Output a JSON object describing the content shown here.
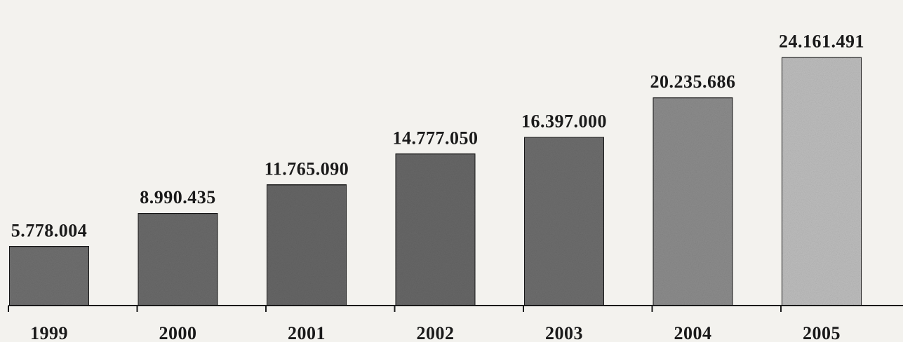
{
  "chart_data": {
    "type": "bar",
    "categories": [
      "1999",
      "2000",
      "2001",
      "2002",
      "2003",
      "2004",
      "2005"
    ],
    "values": [
      5778004,
      8990435,
      11765090,
      14777050,
      16397000,
      20235686,
      24161491
    ],
    "data_labels": [
      "5.778.004",
      "8.990.435",
      "11.765.090",
      "14.777.050",
      "16.397.000",
      "20.235.686",
      "24.161.491"
    ],
    "title": "",
    "xlabel": "",
    "ylabel": "",
    "ylim": [
      0,
      27000000
    ],
    "grid": false,
    "legend": "none",
    "colors": {
      "bar_fill": [
        "#6f6f6f",
        "#6a6a6a",
        "#666666",
        "#676767",
        "#6d6d6d",
        "#8c8c8c",
        "#bdbdbd"
      ],
      "bar_stroke": "#1a1a1a",
      "axis": "#1a1a1a",
      "text": "#1a1a1a",
      "background": "#f3f2ee"
    }
  }
}
